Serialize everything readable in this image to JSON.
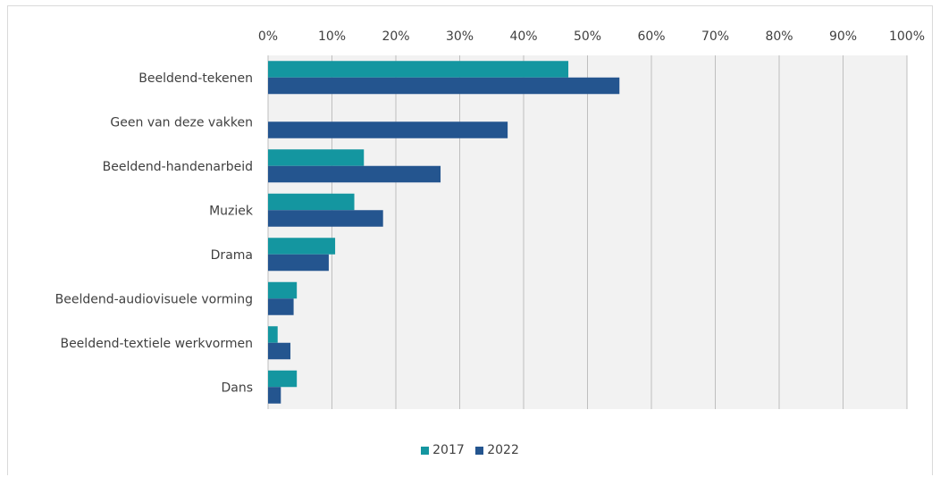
{
  "chart_data": {
    "type": "bar",
    "orientation": "horizontal",
    "categories": [
      "Beeldend-tekenen",
      "Geen van deze vakken",
      "Beeldend-handenarbeid",
      "Muziek",
      "Drama",
      "Beeldend-audiovisuele vorming",
      "Beeldend-textiele werkvormen",
      "Dans"
    ],
    "series": [
      {
        "name": "2017",
        "color": "#1496a0",
        "values": [
          47,
          0,
          15,
          13.5,
          10.5,
          4.5,
          1.5,
          4.5
        ]
      },
      {
        "name": "2022",
        "color": "#24558f",
        "values": [
          55,
          37.5,
          27,
          18,
          9.5,
          4,
          3.5,
          2
        ]
      }
    ],
    "x_ticks": [
      "0%",
      "10%",
      "20%",
      "30%",
      "40%",
      "50%",
      "60%",
      "70%",
      "80%",
      "90%",
      "100%"
    ],
    "xlim": [
      0,
      100
    ],
    "x_axis_position": "top",
    "grid": true,
    "legend_position": "bottom",
    "title": "",
    "xlabel": "",
    "ylabel": ""
  }
}
